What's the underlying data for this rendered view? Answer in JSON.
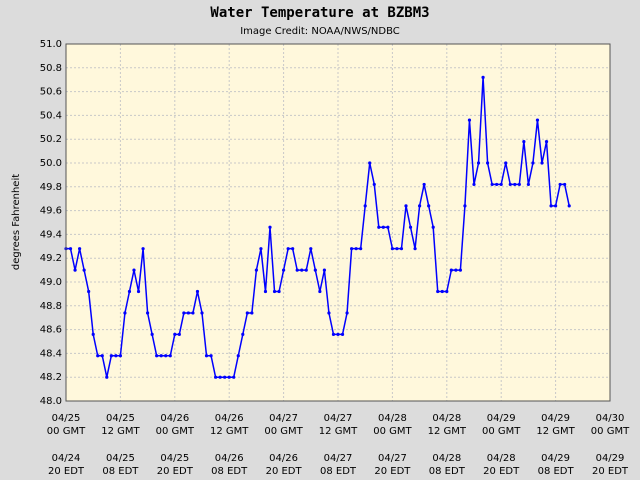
{
  "chart_data": {
    "type": "line",
    "title": "Water Temperature at BZBM3",
    "subtitle": "Image Credit: NOAA/NWS/NDBC",
    "y_label": "degrees Fahrenheit",
    "grid": true,
    "ylim": [
      {
        "value": 48,
        "label": "48.0"
      },
      {
        "value": 51,
        "label": "51.0"
      }
    ],
    "yticks": [
      {
        "value": 48,
        "label": "48.0"
      },
      48.2,
      48.4,
      48.6,
      48.8,
      {
        "value": 49,
        "label": "49.0"
      },
      49.2,
      49.4,
      49.6,
      49.8,
      {
        "value": 50,
        "label": "50.0"
      },
      50.2,
      50.4,
      50.6,
      50.8,
      {
        "value": 51,
        "label": "51.0"
      }
    ],
    "xlim": [
      "04/25 00",
      "04/30 00"
    ],
    "xticks": [
      {
        "value": "04/25 00",
        "label": [
          "04/25",
          "00 GMT"
        ],
        "label_edt": [
          "04/24",
          "20 EDT"
        ]
      },
      {
        "value": "04/25 12",
        "label": [
          "04/25",
          "12 GMT"
        ],
        "label_edt": [
          "04/25",
          "08 EDT"
        ]
      },
      {
        "value": "04/26 00",
        "label": [
          "04/26",
          "00 GMT"
        ],
        "label_edt": [
          "04/25",
          "20 EDT"
        ]
      },
      {
        "value": "04/26 12",
        "label": [
          "04/26",
          "12 GMT"
        ],
        "label_edt": [
          "04/26",
          "08 EDT"
        ]
      },
      {
        "value": "04/27 00",
        "label": [
          "04/27",
          "00 GMT"
        ],
        "label_edt": [
          "04/26",
          "20 EDT"
        ]
      },
      {
        "value": "04/27 12",
        "label": [
          "04/27",
          "12 GMT"
        ],
        "label_edt": [
          "04/27",
          "08 EDT"
        ]
      },
      {
        "value": "04/28 00",
        "label": [
          "04/28",
          "00 GMT"
        ],
        "label_edt": [
          "04/27",
          "20 EDT"
        ]
      },
      {
        "value": "04/28 12",
        "label": [
          "04/28",
          "12 GMT"
        ],
        "label_edt": [
          "04/28",
          "08 EDT"
        ]
      },
      {
        "value": "04/29 00",
        "label": [
          "04/29",
          "00 GMT"
        ],
        "label_edt": [
          "04/28",
          "20 EDT"
        ]
      },
      {
        "value": "04/29 12",
        "label": [
          "04/29",
          "12 GMT"
        ],
        "label_edt": [
          "04/29",
          "08 EDT"
        ]
      },
      {
        "value": "04/30 00",
        "label": [
          "04/30",
          "00 GMT"
        ],
        "label_edt": [
          "04/29",
          "20 EDT"
        ]
      }
    ],
    "x": [
      "04/25 00",
      "04/25 01",
      "04/25 02",
      "04/25 03",
      "04/25 04",
      "04/25 05",
      "04/25 06",
      "04/25 07",
      "04/25 08",
      "04/25 09",
      "04/25 10",
      "04/25 11",
      "04/25 12",
      "04/25 13",
      "04/25 14",
      "04/25 15",
      "04/25 16",
      "04/25 17",
      "04/25 18",
      "04/25 19",
      "04/25 20",
      "04/25 21",
      "04/25 22",
      "04/25 23",
      "04/26 00",
      "04/26 01",
      "04/26 02",
      "04/26 03",
      "04/26 04",
      "04/26 05",
      "04/26 06",
      "04/26 07",
      "04/26 08",
      "04/26 09",
      "04/26 10",
      "04/26 11",
      "04/26 12",
      "04/26 13",
      "04/26 14",
      "04/26 15",
      "04/26 16",
      "04/26 17",
      "04/26 18",
      "04/26 19",
      "04/26 20",
      "04/26 21",
      "04/26 22",
      "04/26 23",
      "04/27 00",
      "04/27 01",
      "04/27 02",
      "04/27 03",
      "04/27 04",
      "04/27 05",
      "04/27 06",
      "04/27 07",
      "04/27 08",
      "04/27 09",
      "04/27 10",
      "04/27 11",
      "04/27 12",
      "04/27 13",
      "04/27 14",
      "04/27 15",
      "04/27 16",
      "04/27 17",
      "04/27 18",
      "04/27 19",
      "04/27 20",
      "04/27 21",
      "04/27 22",
      "04/27 23",
      "04/28 00",
      "04/28 01",
      "04/28 02",
      "04/28 03",
      "04/28 04",
      "04/28 05",
      "04/28 06",
      "04/28 07",
      "04/28 08",
      "04/28 09",
      "04/28 10",
      "04/28 11",
      "04/28 12",
      "04/28 13",
      "04/28 14",
      "04/28 15",
      "04/28 16",
      "04/28 17",
      "04/28 18",
      "04/28 19",
      "04/28 20",
      "04/28 21",
      "04/28 22",
      "04/28 23",
      "04/29 00",
      "04/29 01",
      "04/29 02",
      "04/29 03",
      "04/29 04",
      "04/29 05",
      "04/29 06",
      "04/29 07",
      "04/29 08",
      "04/29 09",
      "04/29 10",
      "04/29 11",
      "04/29 12",
      "04/29 13",
      "04/29 14",
      "04/29 15"
    ],
    "series": [
      {
        "color": "#0000ff",
        "values": [
          49.28,
          49.28,
          49.1,
          49.28,
          49.1,
          48.92,
          48.56,
          48.38,
          48.38,
          48.2,
          48.38,
          48.38,
          48.38,
          48.74,
          48.92,
          49.1,
          48.92,
          49.28,
          48.74,
          48.56,
          48.38,
          48.38,
          48.38,
          48.38,
          48.56,
          48.56,
          48.74,
          48.74,
          48.74,
          48.92,
          48.74,
          48.38,
          48.38,
          48.2,
          48.2,
          48.2,
          48.2,
          48.2,
          48.38,
          48.56,
          48.74,
          48.74,
          49.1,
          49.28,
          48.92,
          49.46,
          48.92,
          48.92,
          49.1,
          49.28,
          49.28,
          49.1,
          49.1,
          49.1,
          49.28,
          49.1,
          48.92,
          49.1,
          48.74,
          48.56,
          48.56,
          48.56,
          48.74,
          49.28,
          49.28,
          49.28,
          49.64,
          50.0,
          49.82,
          49.46,
          49.46,
          49.46,
          49.28,
          49.28,
          49.28,
          49.64,
          49.46,
          49.28,
          49.64,
          49.82,
          49.64,
          49.46,
          48.92,
          48.92,
          48.92,
          49.1,
          49.1,
          49.1,
          49.64,
          50.36,
          49.82,
          50.0,
          50.72,
          50.0,
          49.82,
          49.82,
          49.82,
          50.0,
          49.82,
          49.82,
          49.82,
          50.18,
          49.82,
          50.0,
          50.36,
          50.0,
          50.18,
          49.64,
          49.64,
          49.82,
          49.82,
          49.64
        ]
      }
    ]
  }
}
